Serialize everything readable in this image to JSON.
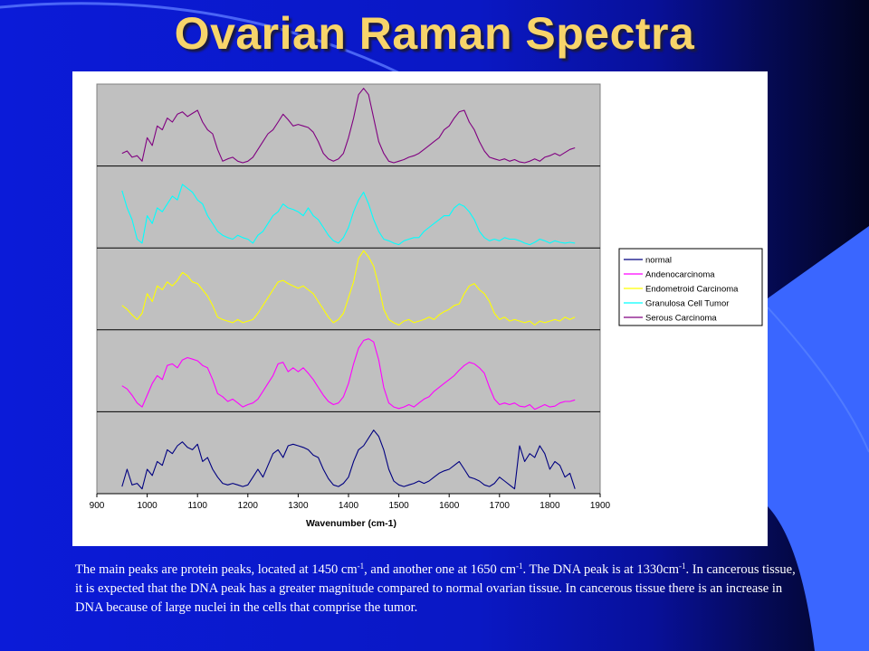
{
  "slide": {
    "title": "Ovarian Raman Spectra",
    "caption": {
      "p1": "The main peaks are protein peaks, located at 1450 cm",
      "sup1": "-1",
      "p2": ", and another one at 1650 cm",
      "sup2": "-1",
      "p3": ". The DNA peak is at 1330cm",
      "sup3": "-1",
      "p4": ".  In cancerous tissue, it is expected that the DNA peak has a greater magnitude compared to normal ovarian tissue.  In cancerous tissue there is an increase in DNA because of large nuclei in the cells that comprise the tumor."
    }
  },
  "colors": {
    "plot_area": "#c0c0c0",
    "normal": "#000080",
    "adenocarcinoma": "#ff00ff",
    "endometroid": "#ffff00",
    "granulosa": "#00ffff",
    "serous": "#800080"
  },
  "chart_data": {
    "type": "line",
    "xlabel": "Wavenumber (cm-1)",
    "ylabel": "",
    "xlim": [
      900,
      1900
    ],
    "x_ticks": [
      900,
      1000,
      1100,
      1200,
      1300,
      1400,
      1500,
      1600,
      1700,
      1800,
      1900
    ],
    "stacked_panels": 5,
    "panel_ylim": [
      0,
      1
    ],
    "grid": false,
    "legend_position": "right",
    "x": [
      950,
      960,
      970,
      980,
      990,
      1000,
      1010,
      1020,
      1030,
      1040,
      1050,
      1060,
      1070,
      1080,
      1090,
      1100,
      1110,
      1120,
      1130,
      1140,
      1150,
      1160,
      1170,
      1180,
      1190,
      1200,
      1210,
      1220,
      1230,
      1240,
      1250,
      1260,
      1270,
      1280,
      1290,
      1300,
      1310,
      1320,
      1330,
      1340,
      1350,
      1360,
      1370,
      1380,
      1390,
      1400,
      1410,
      1420,
      1430,
      1440,
      1450,
      1460,
      1470,
      1480,
      1490,
      1500,
      1510,
      1520,
      1530,
      1540,
      1550,
      1560,
      1570,
      1580,
      1590,
      1600,
      1610,
      1620,
      1630,
      1640,
      1650,
      1660,
      1670,
      1680,
      1690,
      1700,
      1710,
      1720,
      1730,
      1740,
      1750,
      1760,
      1770,
      1780,
      1790,
      1800,
      1810,
      1820,
      1830,
      1840,
      1850
    ],
    "series": [
      {
        "name": "normal",
        "panel": 5,
        "values": [
          0.08,
          0.3,
          0.1,
          0.12,
          0.05,
          0.3,
          0.22,
          0.4,
          0.35,
          0.55,
          0.5,
          0.6,
          0.65,
          0.58,
          0.55,
          0.62,
          0.4,
          0.45,
          0.3,
          0.2,
          0.12,
          0.1,
          0.12,
          0.1,
          0.08,
          0.1,
          0.2,
          0.3,
          0.2,
          0.35,
          0.5,
          0.55,
          0.45,
          0.6,
          0.62,
          0.6,
          0.58,
          0.55,
          0.48,
          0.45,
          0.3,
          0.18,
          0.1,
          0.08,
          0.12,
          0.2,
          0.4,
          0.55,
          0.6,
          0.7,
          0.8,
          0.72,
          0.55,
          0.3,
          0.15,
          0.1,
          0.08,
          0.1,
          0.12,
          0.15,
          0.12,
          0.15,
          0.2,
          0.25,
          0.28,
          0.3,
          0.35,
          0.4,
          0.3,
          0.2,
          0.18,
          0.15,
          0.1,
          0.08,
          0.12,
          0.2,
          0.15,
          0.1,
          0.05,
          0.6,
          0.4,
          0.5,
          0.45,
          0.6,
          0.5,
          0.3,
          0.4,
          0.35,
          0.2,
          0.25,
          0.05
        ]
      },
      {
        "name": "Andenocarcinoma",
        "panel": 4,
        "values": [
          0.32,
          0.28,
          0.2,
          0.1,
          0.05,
          0.2,
          0.35,
          0.45,
          0.4,
          0.58,
          0.6,
          0.55,
          0.65,
          0.68,
          0.66,
          0.64,
          0.58,
          0.55,
          0.4,
          0.22,
          0.18,
          0.12,
          0.15,
          0.1,
          0.05,
          0.08,
          0.1,
          0.15,
          0.25,
          0.35,
          0.45,
          0.6,
          0.62,
          0.5,
          0.55,
          0.5,
          0.55,
          0.48,
          0.4,
          0.3,
          0.2,
          0.12,
          0.08,
          0.1,
          0.18,
          0.35,
          0.6,
          0.8,
          0.9,
          0.92,
          0.88,
          0.65,
          0.3,
          0.1,
          0.05,
          0.03,
          0.05,
          0.08,
          0.05,
          0.1,
          0.15,
          0.18,
          0.25,
          0.3,
          0.35,
          0.4,
          0.45,
          0.52,
          0.58,
          0.62,
          0.6,
          0.55,
          0.48,
          0.3,
          0.15,
          0.08,
          0.1,
          0.08,
          0.1,
          0.06,
          0.05,
          0.08,
          0.02,
          0.05,
          0.08,
          0.05,
          0.06,
          0.1,
          0.12,
          0.12,
          0.14
        ]
      },
      {
        "name": "Endometroid Carcinoma",
        "panel": 3,
        "values": [
          0.3,
          0.25,
          0.18,
          0.12,
          0.2,
          0.45,
          0.35,
          0.55,
          0.5,
          0.6,
          0.55,
          0.62,
          0.72,
          0.68,
          0.6,
          0.58,
          0.5,
          0.42,
          0.3,
          0.15,
          0.12,
          0.1,
          0.08,
          0.12,
          0.08,
          0.1,
          0.12,
          0.2,
          0.3,
          0.4,
          0.5,
          0.6,
          0.62,
          0.58,
          0.55,
          0.52,
          0.55,
          0.5,
          0.45,
          0.35,
          0.25,
          0.15,
          0.08,
          0.12,
          0.2,
          0.4,
          0.6,
          0.9,
          1.0,
          0.92,
          0.8,
          0.55,
          0.25,
          0.12,
          0.08,
          0.05,
          0.1,
          0.12,
          0.08,
          0.1,
          0.12,
          0.15,
          0.12,
          0.18,
          0.22,
          0.25,
          0.3,
          0.32,
          0.45,
          0.55,
          0.58,
          0.5,
          0.45,
          0.35,
          0.2,
          0.12,
          0.15,
          0.1,
          0.12,
          0.1,
          0.08,
          0.1,
          0.05,
          0.1,
          0.08,
          0.1,
          0.12,
          0.1,
          0.15,
          0.12,
          0.15
        ]
      },
      {
        "name": "Granulosa Cell Tumor",
        "panel": 2,
        "values": [
          0.72,
          0.5,
          0.35,
          0.1,
          0.05,
          0.4,
          0.3,
          0.5,
          0.45,
          0.55,
          0.65,
          0.6,
          0.8,
          0.75,
          0.7,
          0.6,
          0.55,
          0.4,
          0.3,
          0.2,
          0.15,
          0.12,
          0.1,
          0.15,
          0.12,
          0.1,
          0.05,
          0.15,
          0.2,
          0.3,
          0.4,
          0.45,
          0.55,
          0.5,
          0.48,
          0.45,
          0.4,
          0.5,
          0.4,
          0.35,
          0.25,
          0.15,
          0.08,
          0.05,
          0.12,
          0.25,
          0.45,
          0.6,
          0.7,
          0.55,
          0.35,
          0.2,
          0.1,
          0.08,
          0.05,
          0.03,
          0.08,
          0.1,
          0.12,
          0.12,
          0.2,
          0.25,
          0.3,
          0.35,
          0.4,
          0.4,
          0.5,
          0.55,
          0.52,
          0.45,
          0.35,
          0.2,
          0.12,
          0.08,
          0.1,
          0.08,
          0.12,
          0.1,
          0.1,
          0.08,
          0.05,
          0.03,
          0.06,
          0.1,
          0.08,
          0.05,
          0.08,
          0.06,
          0.05,
          0.06,
          0.05
        ]
      },
      {
        "name": "Serous Carcinoma",
        "panel": 1,
        "values": [
          0.15,
          0.18,
          0.1,
          0.12,
          0.05,
          0.35,
          0.25,
          0.5,
          0.45,
          0.6,
          0.55,
          0.65,
          0.68,
          0.62,
          0.66,
          0.7,
          0.55,
          0.45,
          0.4,
          0.2,
          0.05,
          0.08,
          0.1,
          0.05,
          0.03,
          0.05,
          0.1,
          0.2,
          0.3,
          0.4,
          0.45,
          0.55,
          0.65,
          0.58,
          0.5,
          0.52,
          0.5,
          0.48,
          0.42,
          0.3,
          0.15,
          0.08,
          0.05,
          0.08,
          0.15,
          0.35,
          0.6,
          0.9,
          0.98,
          0.9,
          0.6,
          0.3,
          0.15,
          0.05,
          0.03,
          0.05,
          0.07,
          0.1,
          0.12,
          0.15,
          0.2,
          0.25,
          0.3,
          0.35,
          0.45,
          0.5,
          0.6,
          0.68,
          0.7,
          0.55,
          0.45,
          0.3,
          0.18,
          0.1,
          0.08,
          0.06,
          0.08,
          0.05,
          0.07,
          0.04,
          0.03,
          0.05,
          0.08,
          0.05,
          0.1,
          0.12,
          0.15,
          0.12,
          0.16,
          0.2,
          0.22
        ]
      }
    ]
  }
}
